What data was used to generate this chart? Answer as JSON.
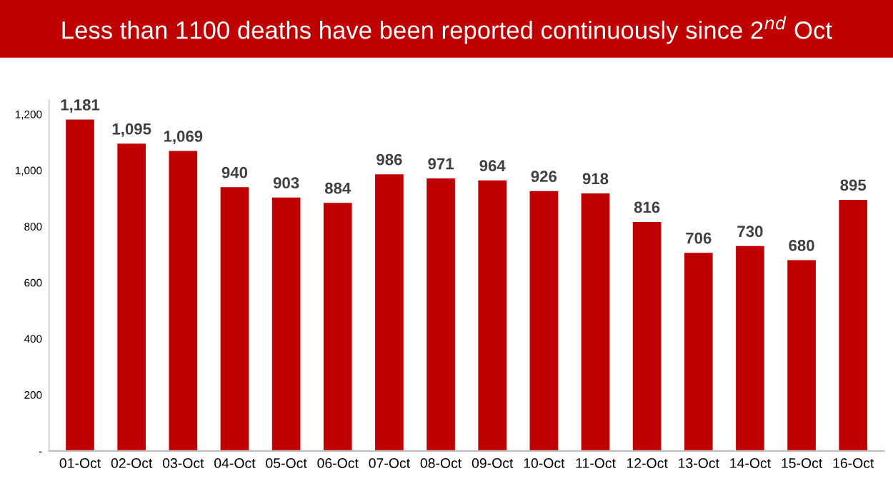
{
  "chart_data": {
    "type": "bar",
    "title": "Less than 1100 deaths have been reported continuously since 2$^{nd}$ Oct",
    "categories": [
      "01-Oct",
      "02-Oct",
      "03-Oct",
      "04-Oct",
      "05-Oct",
      "06-Oct",
      "07-Oct",
      "08-Oct",
      "09-Oct",
      "10-Oct",
      "11-Oct",
      "12-Oct",
      "13-Oct",
      "14-Oct",
      "15-Oct",
      "16-Oct"
    ],
    "values": [
      1181,
      1095,
      1069,
      940,
      903,
      884,
      986,
      971,
      964,
      926,
      918,
      816,
      706,
      730,
      680,
      895
    ],
    "value_labels": [
      "1,181",
      "1,095",
      "1,069",
      "940",
      "903",
      "884",
      "986",
      "971",
      "964",
      "926",
      "918",
      "816",
      "706",
      "730",
      "680",
      "895"
    ],
    "color": "#c00000",
    "ylim": [
      0,
      1250
    ],
    "yticks": [
      {
        "value": 0,
        "label": "-"
      },
      {
        "value": 200,
        "label": "200"
      },
      {
        "value": 400,
        "label": "400"
      },
      {
        "value": 600,
        "label": "600"
      },
      {
        "value": 800,
        "label": "800"
      },
      {
        "value": 1000,
        "label": "1,000"
      },
      {
        "value": 1200,
        "label": "1,200"
      }
    ],
    "grid": false
  }
}
